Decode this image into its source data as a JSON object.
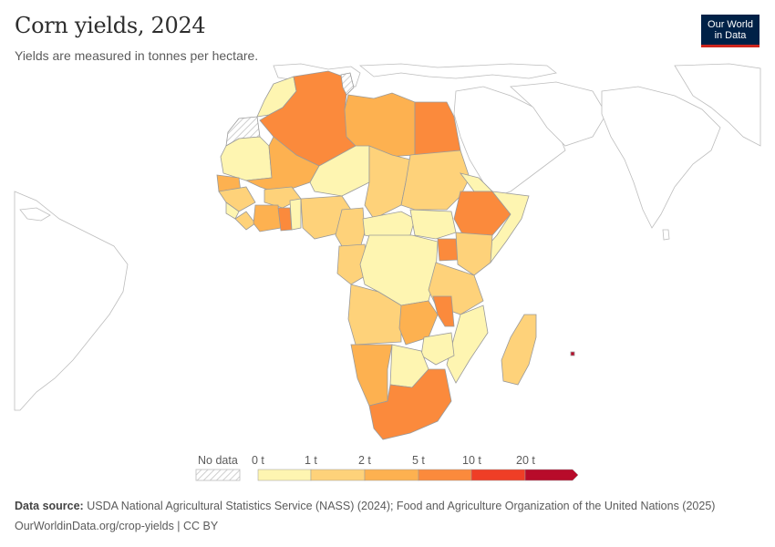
{
  "header": {
    "title": "Corn yields, 2024",
    "subtitle": "Yields are measured in tonnes per hectare."
  },
  "logo": {
    "line1": "Our World",
    "line2": "in Data"
  },
  "legend": {
    "no_data_label": "No data",
    "ticks": [
      "0 t",
      "1 t",
      "2 t",
      "5 t",
      "10 t",
      "20 t"
    ],
    "bin_colors": [
      "#fef5b1",
      "#fed27a",
      "#fdb150",
      "#fb8a3c",
      "#ef3e26",
      "#b80b2a"
    ]
  },
  "footer": {
    "source_label": "Data source:",
    "source_text": "USDA National Agricultural Statistics Service (NASS) (2024); Food and Agriculture Organization of the United Nations (2025)",
    "url_license": "OurWorldinData.org/crop-yields | CC BY"
  },
  "colors": {
    "map_border": "#9a9a9a",
    "no_data_fill": "#ffffff",
    "hatch": "#cfcfcf"
  }
}
